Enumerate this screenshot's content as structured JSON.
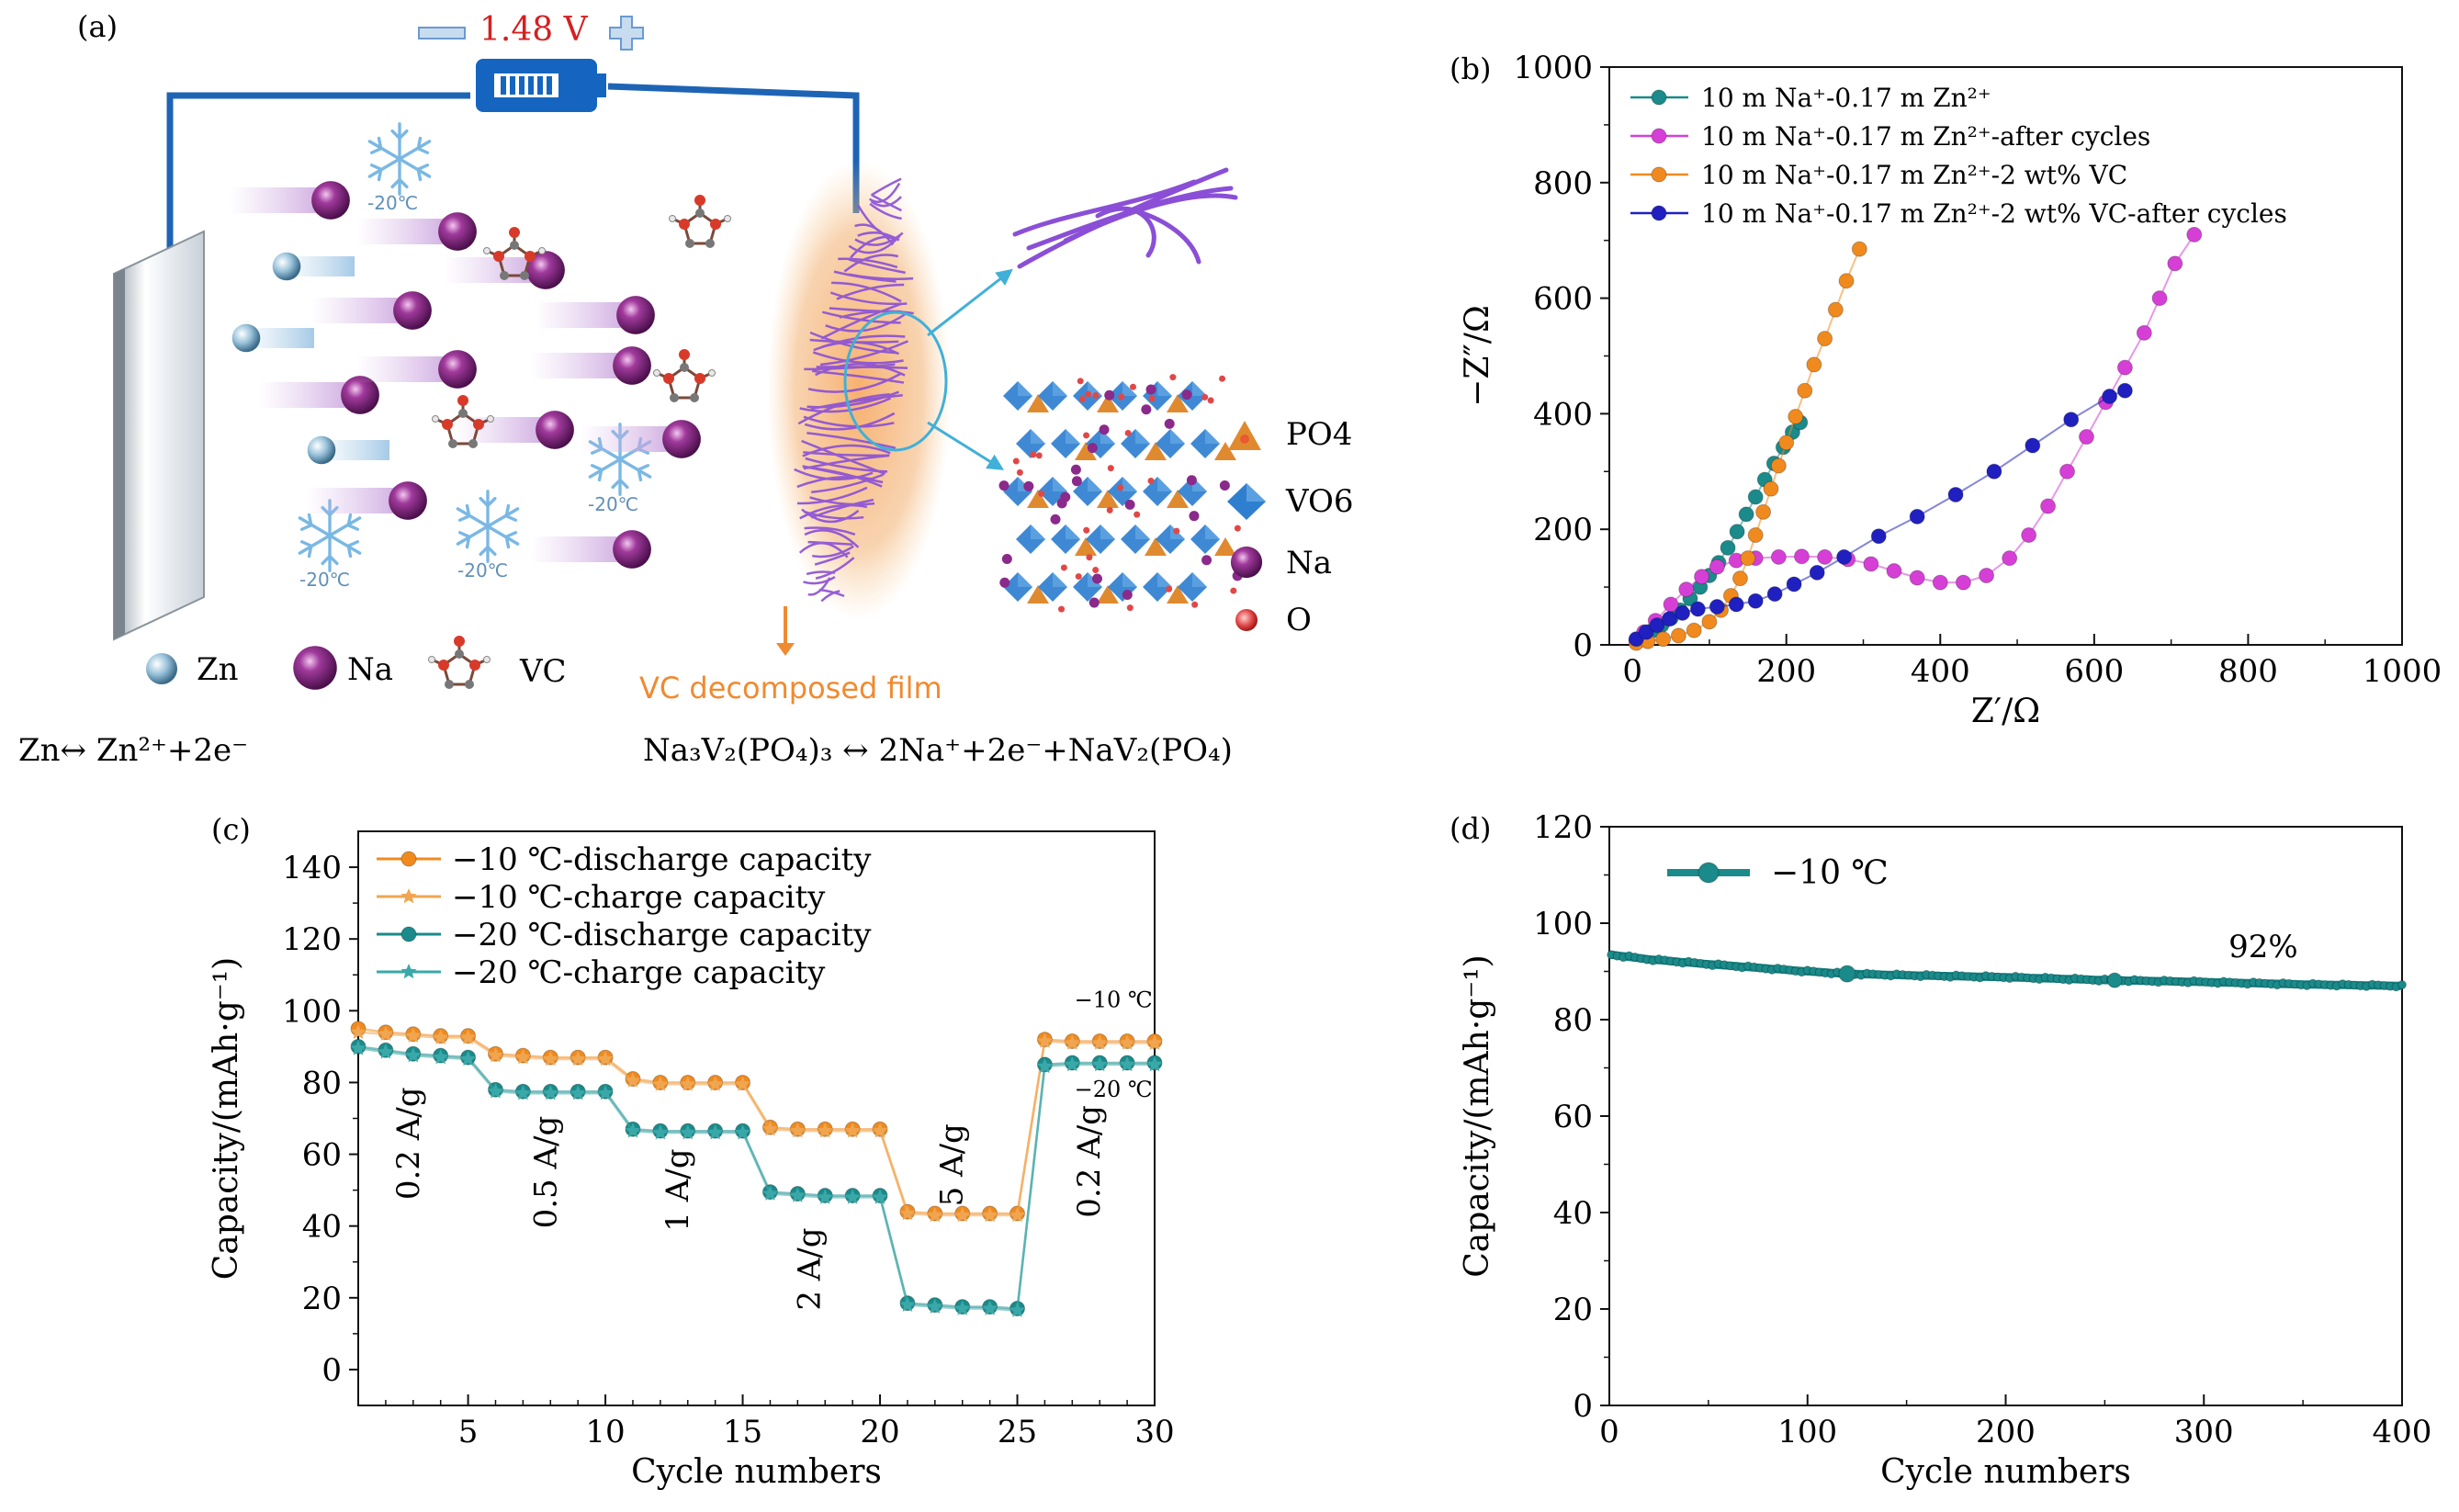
{
  "panel_a": {
    "label": "(a)",
    "voltage": "1.48 V",
    "temps": [
      "-20℃",
      "-20℃",
      "-20℃",
      "-20℃"
    ],
    "legend_items": [
      {
        "icon": "zn-sphere-icon",
        "label": "Zn"
      },
      {
        "icon": "na-sphere-icon",
        "label": "Na"
      },
      {
        "icon": "vc-molecule-icon",
        "label": "VC"
      }
    ],
    "film_label": "VC decomposed film",
    "structure_legend": [
      {
        "icon": "po4-tetrahedron-icon",
        "label": "PO4"
      },
      {
        "icon": "vo6-octahedron-icon",
        "label": "VO6"
      },
      {
        "icon": "na-sphere-icon",
        "label": "Na"
      },
      {
        "icon": "o-atom-icon",
        "label": "O"
      }
    ],
    "eq_left": "Zn↔ Zn²⁺+2e⁻",
    "eq_right": "Na₃V₂(PO₄)₃ ↔ 2Na⁺+2e⁻+NaV₂(PO₄)",
    "colors": {
      "battery": "#1565c0",
      "wire": "#1e64b4",
      "na": "#7b1f7a",
      "film": "#8a4fd6",
      "glow": "#f0a050",
      "voltage": "#d42020",
      "arrow": "#40b0d8",
      "film_label": "#f08a30"
    }
  },
  "chart_data": [
    {
      "id": "b",
      "type": "scatter",
      "panel_label": "(b)",
      "xlabel": "Z′/Ω",
      "ylabel": "−Z″/Ω",
      "xlim": [
        -30,
        1000
      ],
      "ylim": [
        0,
        1000
      ],
      "xticks": [
        0,
        200,
        400,
        600,
        800,
        1000
      ],
      "yticks": [
        0,
        200,
        400,
        600,
        800,
        1000
      ],
      "legend_position": "top-left",
      "series": [
        {
          "name": "10 m Na⁺-0.17 m Zn²⁺",
          "color": "#1a8a8a",
          "points": [
            [
              5,
              8
            ],
            [
              15,
              16
            ],
            [
              25,
              24
            ],
            [
              38,
              34
            ],
            [
              50,
              46
            ],
            [
              62,
              60
            ],
            [
              75,
              80
            ],
            [
              88,
              100
            ],
            [
              100,
              120
            ],
            [
              112,
              142
            ],
            [
              124,
              168
            ],
            [
              136,
              196
            ],
            [
              148,
              226
            ],
            [
              160,
              256
            ],
            [
              172,
              286
            ],
            [
              184,
              314
            ],
            [
              196,
              342
            ],
            [
              208,
              368
            ],
            [
              218,
              385
            ]
          ]
        },
        {
          "name": "10 m Na⁺-0.17 m Zn²⁺-after cycles",
          "color": "#d63fd6",
          "points": [
            [
              5,
              8
            ],
            [
              15,
              22
            ],
            [
              30,
              42
            ],
            [
              50,
              70
            ],
            [
              70,
              96
            ],
            [
              90,
              118
            ],
            [
              110,
              135
            ],
            [
              135,
              146
            ],
            [
              160,
              150
            ],
            [
              190,
              152
            ],
            [
              220,
              153
            ],
            [
              250,
              152
            ],
            [
              280,
              148
            ],
            [
              310,
              140
            ],
            [
              340,
              128
            ],
            [
              370,
              116
            ],
            [
              400,
              108
            ],
            [
              430,
              108
            ],
            [
              460,
              120
            ],
            [
              490,
              150
            ],
            [
              515,
              190
            ],
            [
              540,
              240
            ],
            [
              565,
              300
            ],
            [
              590,
              360
            ],
            [
              615,
              420
            ],
            [
              640,
              480
            ],
            [
              665,
              540
            ],
            [
              685,
              600
            ],
            [
              705,
              660
            ],
            [
              730,
              710
            ]
          ]
        },
        {
          "name": "10 m Na⁺-0.17 m Zn²⁺-2 wt% VC",
          "color": "#f08a1e",
          "points": [
            [
              5,
              3
            ],
            [
              20,
              6
            ],
            [
              40,
              10
            ],
            [
              60,
              16
            ],
            [
              80,
              25
            ],
            [
              100,
              40
            ],
            [
              115,
              60
            ],
            [
              128,
              85
            ],
            [
              140,
              115
            ],
            [
              150,
              150
            ],
            [
              160,
              190
            ],
            [
              170,
              230
            ],
            [
              180,
              270
            ],
            [
              190,
              310
            ],
            [
              200,
              350
            ],
            [
              212,
              395
            ],
            [
              224,
              440
            ],
            [
              236,
              485
            ],
            [
              250,
              530
            ],
            [
              264,
              580
            ],
            [
              278,
              630
            ],
            [
              295,
              685
            ]
          ]
        },
        {
          "name": "10 m Na⁺-0.17 m Zn²⁺-2 wt% VC-after cycles",
          "color": "#2020c0",
          "points": [
            [
              5,
              10
            ],
            [
              18,
              22
            ],
            [
              32,
              34
            ],
            [
              48,
              45
            ],
            [
              65,
              55
            ],
            [
              85,
              62
            ],
            [
              110,
              66
            ],
            [
              135,
              70
            ],
            [
              160,
              76
            ],
            [
              185,
              88
            ],
            [
              210,
              105
            ],
            [
              240,
              125
            ],
            [
              275,
              152
            ],
            [
              320,
              188
            ],
            [
              370,
              222
            ],
            [
              420,
              260
            ],
            [
              470,
              300
            ],
            [
              520,
              345
            ],
            [
              570,
              390
            ],
            [
              620,
              430
            ],
            [
              640,
              440
            ]
          ]
        }
      ]
    },
    {
      "id": "c",
      "type": "line",
      "panel_label": "(c)",
      "xlabel": "Cycle numbers",
      "ylabel": "Capacity/(mAh·g⁻¹)",
      "xlim": [
        1,
        30
      ],
      "ylim": [
        -10,
        150
      ],
      "xticks": [
        5,
        10,
        15,
        20,
        25,
        30
      ],
      "yticks": [
        0,
        20,
        40,
        60,
        80,
        100,
        120,
        140
      ],
      "legend_position": "top-left",
      "rate_labels": [
        {
          "text": "0.2 A/g",
          "x": 3.2,
          "y": 63
        },
        {
          "text": "0.5 A/g",
          "x": 8.2,
          "y": 55
        },
        {
          "text": "1 A/g",
          "x": 13.0,
          "y": 50
        },
        {
          "text": "2 A/g",
          "x": 17.8,
          "y": 28
        },
        {
          "text": "5 A/g",
          "x": 23.0,
          "y": 57
        },
        {
          "text": "0.2 A/g",
          "x": 28.0,
          "y": 58
        }
      ],
      "temp_labels": [
        {
          "text": "−10 ℃",
          "x": 28.5,
          "y": 101
        },
        {
          "text": "−20 ℃",
          "x": 28.5,
          "y": 76
        }
      ],
      "series": [
        {
          "name": "−10 ℃-discharge capacity",
          "color": "#f08a1e",
          "marker": "circle",
          "values": [
            [
              1,
              95
            ],
            [
              2,
              94
            ],
            [
              3,
              93.5
            ],
            [
              4,
              93
            ],
            [
              5,
              93
            ],
            [
              6,
              88
            ],
            [
              7,
              87.5
            ],
            [
              8,
              87
            ],
            [
              9,
              87
            ],
            [
              10,
              87
            ],
            [
              11,
              81
            ],
            [
              12,
              80
            ],
            [
              13,
              80
            ],
            [
              14,
              80
            ],
            [
              15,
              80
            ],
            [
              16,
              67.5
            ],
            [
              17,
              67
            ],
            [
              18,
              67
            ],
            [
              19,
              67
            ],
            [
              20,
              67
            ],
            [
              21,
              44
            ],
            [
              22,
              43.5
            ],
            [
              23,
              43.5
            ],
            [
              24,
              43.5
            ],
            [
              25,
              43.5
            ],
            [
              26,
              92
            ],
            [
              27,
              91.5
            ],
            [
              28,
              91.5
            ],
            [
              29,
              91.5
            ],
            [
              30,
              91.5
            ]
          ]
        },
        {
          "name": "−10 ℃-charge capacity",
          "color": "#f0a550",
          "marker": "star",
          "values": [
            [
              1,
              94
            ],
            [
              2,
              93.5
            ],
            [
              3,
              93
            ],
            [
              4,
              92.5
            ],
            [
              5,
              92.5
            ],
            [
              6,
              87.5
            ],
            [
              7,
              87
            ],
            [
              8,
              86.5
            ],
            [
              9,
              86.5
            ],
            [
              10,
              86.5
            ],
            [
              11,
              80.5
            ],
            [
              12,
              79.5
            ],
            [
              13,
              79.5
            ],
            [
              14,
              79.5
            ],
            [
              15,
              79.5
            ],
            [
              16,
              67
            ],
            [
              17,
              66.5
            ],
            [
              18,
              66.5
            ],
            [
              19,
              66.5
            ],
            [
              20,
              66.5
            ],
            [
              21,
              43.5
            ],
            [
              22,
              43
            ],
            [
              23,
              43
            ],
            [
              24,
              43
            ],
            [
              25,
              43
            ],
            [
              26,
              91.5
            ],
            [
              27,
              91
            ],
            [
              28,
              91
            ],
            [
              29,
              91
            ],
            [
              30,
              91
            ]
          ]
        },
        {
          "name": "−20 ℃-discharge capacity",
          "color": "#1a8a8a",
          "marker": "circle",
          "values": [
            [
              1,
              90
            ],
            [
              2,
              89
            ],
            [
              3,
              88
            ],
            [
              4,
              87.5
            ],
            [
              5,
              87
            ],
            [
              6,
              78
            ],
            [
              7,
              77.5
            ],
            [
              8,
              77.5
            ],
            [
              9,
              77.5
            ],
            [
              10,
              77.5
            ],
            [
              11,
              67
            ],
            [
              12,
              66.5
            ],
            [
              13,
              66.5
            ],
            [
              14,
              66.5
            ],
            [
              15,
              66.5
            ],
            [
              16,
              49.5
            ],
            [
              17,
              49
            ],
            [
              18,
              48.5
            ],
            [
              19,
              48.5
            ],
            [
              20,
              48.5
            ],
            [
              21,
              18.5
            ],
            [
              22,
              18
            ],
            [
              23,
              17.5
            ],
            [
              24,
              17.5
            ],
            [
              25,
              17
            ],
            [
              26,
              85
            ],
            [
              27,
              85.5
            ],
            [
              28,
              85.5
            ],
            [
              29,
              85.5
            ],
            [
              30,
              85.5
            ]
          ]
        },
        {
          "name": "−20 ℃-charge capacity",
          "color": "#3aa8a8",
          "marker": "star",
          "values": [
            [
              1,
              89.5
            ],
            [
              2,
              88.5
            ],
            [
              3,
              87.5
            ],
            [
              4,
              87
            ],
            [
              5,
              86.5
            ],
            [
              6,
              77.5
            ],
            [
              7,
              77
            ],
            [
              8,
              77
            ],
            [
              9,
              77
            ],
            [
              10,
              77
            ],
            [
              11,
              66.5
            ],
            [
              12,
              66
            ],
            [
              13,
              66
            ],
            [
              14,
              66
            ],
            [
              15,
              66
            ],
            [
              16,
              49
            ],
            [
              17,
              48.5
            ],
            [
              18,
              48
            ],
            [
              19,
              48
            ],
            [
              20,
              48
            ],
            [
              21,
              18
            ],
            [
              22,
              17.5
            ],
            [
              23,
              17
            ],
            [
              24,
              17
            ],
            [
              25,
              16.5
            ],
            [
              26,
              84.5
            ],
            [
              27,
              85
            ],
            [
              28,
              85
            ],
            [
              29,
              85
            ],
            [
              30,
              85
            ]
          ]
        }
      ]
    },
    {
      "id": "d",
      "type": "line",
      "panel_label": "(d)",
      "xlabel": "Cycle numbers",
      "ylabel": "Capacity/(mAh·g⁻¹)",
      "xlim": [
        0,
        400
      ],
      "ylim": [
        0,
        120
      ],
      "xticks": [
        0,
        100,
        200,
        300,
        400
      ],
      "yticks": [
        0,
        20,
        40,
        60,
        80,
        100,
        120
      ],
      "legend_position": "top-left",
      "annotation": {
        "text": "92%",
        "x": 330,
        "y": 93
      },
      "series": [
        {
          "name": "−10 ℃",
          "color": "#1a8a8a",
          "anchors": [
            [
              0,
              93.5
            ],
            [
              20,
              92.5
            ],
            [
              50,
              91.5
            ],
            [
              100,
              90
            ],
            [
              120,
              89.5
            ],
            [
              150,
              89.2
            ],
            [
              200,
              88.8
            ],
            [
              250,
              88.2
            ],
            [
              300,
              87.8
            ],
            [
              350,
              87.3
            ],
            [
              400,
              87
            ]
          ]
        }
      ]
    }
  ]
}
